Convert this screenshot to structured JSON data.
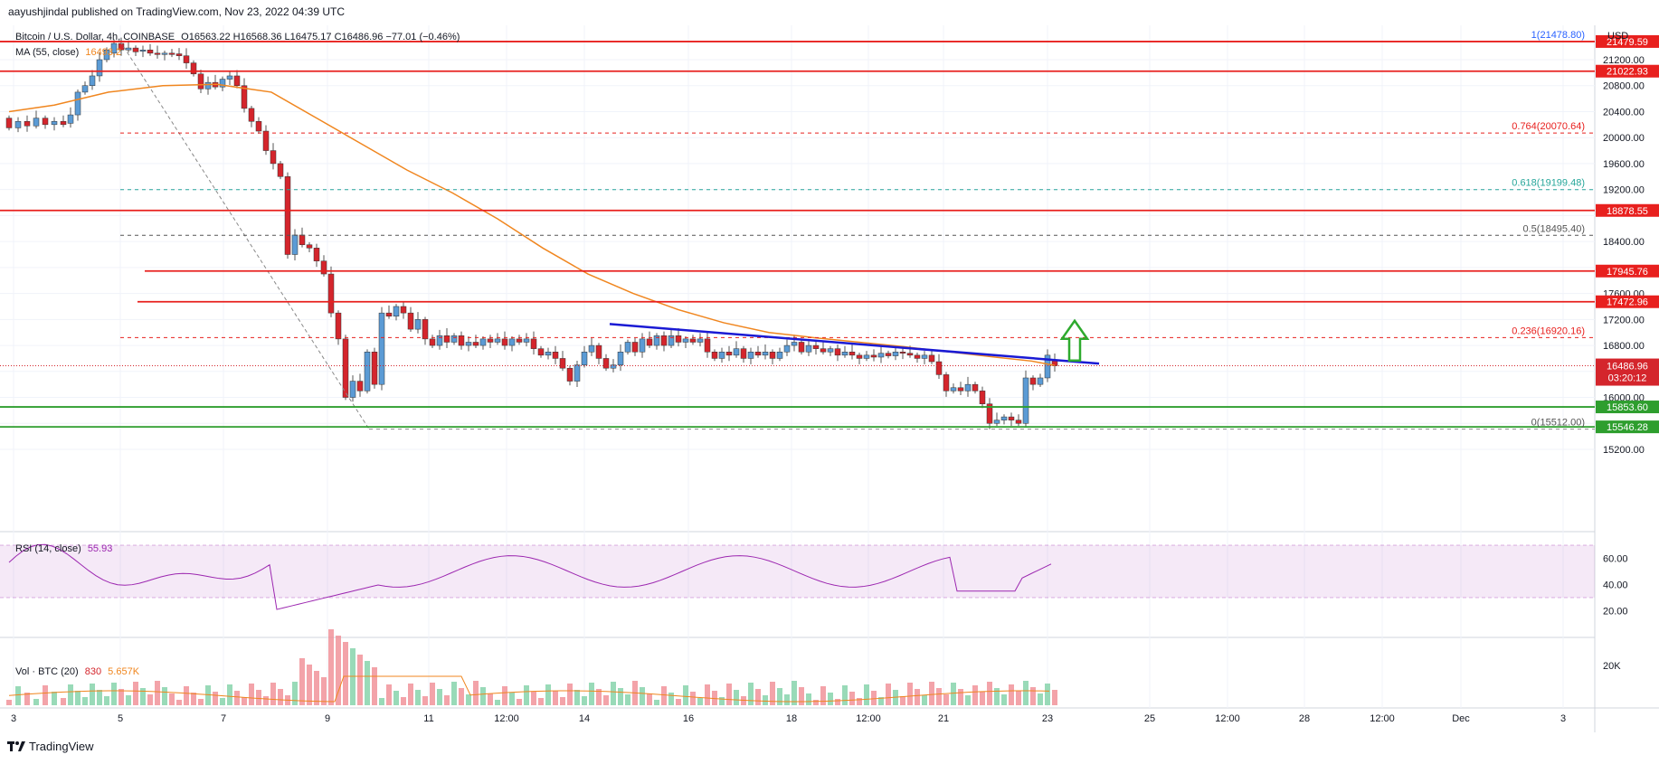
{
  "meta": {
    "publisher": "aayushjindal published on TradingView.com, Nov 23, 2022 04:39 UTC"
  },
  "header": {
    "symbol": "Bitcoin / U.S. Dollar, 4h, COINBASE",
    "ohlc": "O16563.22 H16568.36 L16475.17 C16486.96 −77.01 (−0.46%)",
    "ma_label": "MA (55, close)",
    "ma_value": "16493.2",
    "currency": "USD"
  },
  "rsi": {
    "label": "RSI (14, close)",
    "value": "55.93"
  },
  "volume": {
    "label": "Vol · BTC (20)",
    "v1": "830",
    "v2": "5.657K"
  },
  "price_axis": {
    "ticks": [
      "21200.00",
      "20800.00",
      "20400.00",
      "20000.00",
      "19600.00",
      "19200.00",
      "18400.00",
      "17600.00",
      "17200.00",
      "16800.00",
      "16000.00",
      "15200.00"
    ],
    "rsi_ticks": [
      "60.00",
      "40.00",
      "20.00"
    ],
    "vol_tick": "20K"
  },
  "levels": {
    "r_21479": "21479.59",
    "r_21022": "21022.93",
    "r_18878": "18878.55",
    "r_17945": "17945.76",
    "r_17472": "17472.96",
    "current": "16486.96",
    "countdown": "03:20:12",
    "s_15853": "15853.60",
    "s_15546": "15546.28"
  },
  "fib": {
    "f1": "1(21478.80)",
    "f764": "0.764(20070.64)",
    "f618": "0.618(19199.48)",
    "f5": "0.5(18495.40)",
    "f236": "0.236(16920.16)",
    "f0": "0(15512.00)"
  },
  "time_axis": {
    "labels": [
      "3",
      "5",
      "7",
      "9",
      "11",
      "12:00",
      "14",
      "16",
      "18",
      "12:00",
      "21",
      "23",
      "25",
      "12:00",
      "28",
      "12:00",
      "Dec",
      "3"
    ]
  },
  "brand": {
    "name": "TradingView"
  },
  "colors": {
    "up": "#5b9bd5",
    "down": "#d4252c",
    "ma": "#f0861f",
    "resistance": "#e8201e",
    "support": "#2e9e2e",
    "trend": "#1a1ad4",
    "arrow": "#2eaa2e",
    "rsi": "#9c27b0",
    "fib_green": "#26a69a"
  }
}
